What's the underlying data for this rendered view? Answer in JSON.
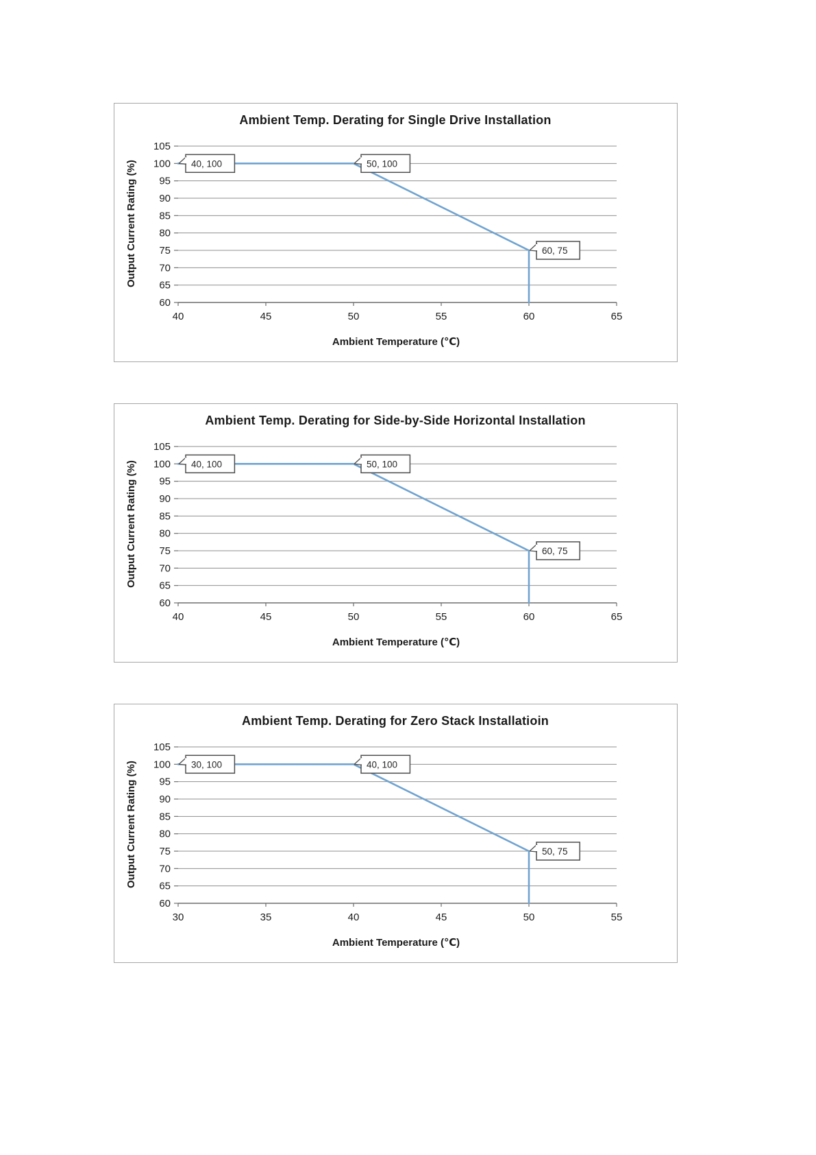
{
  "page": {
    "background": "#ffffff"
  },
  "chart_data": [
    {
      "type": "line",
      "title": "Ambient Temp. Derating for Single Drive Installation",
      "xlabel": "Ambient Temperature (℃)",
      "ylabel": "Output Current Rating (%)",
      "series": [
        {
          "name": "derating-curve",
          "x": [
            40,
            50,
            60,
            60
          ],
          "y": [
            100,
            100,
            75,
            60
          ]
        }
      ],
      "xlim": [
        40,
        65
      ],
      "ylim": [
        60,
        105
      ],
      "xticks": [
        40,
        45,
        50,
        55,
        60,
        65
      ],
      "yticks": [
        60,
        65,
        70,
        75,
        80,
        85,
        90,
        95,
        100,
        105
      ],
      "grid": true,
      "legend": false,
      "line_color": "#6fa3d0",
      "grid_color": "#8f8f8f",
      "axis_color": "#6f6f6f",
      "callout_border_color": "#4d4d4d",
      "data_labels": [
        {
          "x": 40,
          "y": 100,
          "text": "40, 100"
        },
        {
          "x": 50,
          "y": 100,
          "text": "50, 100"
        },
        {
          "x": 60,
          "y": 75,
          "text": "60, 75"
        }
      ]
    },
    {
      "type": "line",
      "title": "Ambient Temp. Derating for Side-by-Side Horizontal Installation",
      "xlabel": "Ambient Temperature (℃)",
      "ylabel": "Output Current Rating (%)",
      "series": [
        {
          "name": "derating-curve",
          "x": [
            40,
            50,
            60,
            60
          ],
          "y": [
            100,
            100,
            75,
            60
          ]
        }
      ],
      "xlim": [
        40,
        65
      ],
      "ylim": [
        60,
        105
      ],
      "xticks": [
        40,
        45,
        50,
        55,
        60,
        65
      ],
      "yticks": [
        60,
        65,
        70,
        75,
        80,
        85,
        90,
        95,
        100,
        105
      ],
      "grid": true,
      "legend": false,
      "line_color": "#6fa3d0",
      "grid_color": "#8f8f8f",
      "axis_color": "#6f6f6f",
      "callout_border_color": "#4d4d4d",
      "data_labels": [
        {
          "x": 40,
          "y": 100,
          "text": "40, 100"
        },
        {
          "x": 50,
          "y": 100,
          "text": "50, 100"
        },
        {
          "x": 60,
          "y": 75,
          "text": "60, 75"
        }
      ]
    },
    {
      "type": "line",
      "title": "Ambient Temp. Derating for Zero Stack Installatioin",
      "xlabel": "Ambient Temperature (℃)",
      "ylabel": "Output Current Rating (%)",
      "series": [
        {
          "name": "derating-curve",
          "x": [
            30,
            40,
            50,
            50
          ],
          "y": [
            100,
            100,
            75,
            60
          ]
        }
      ],
      "xlim": [
        30,
        55
      ],
      "ylim": [
        60,
        105
      ],
      "xticks": [
        30,
        35,
        40,
        45,
        50,
        55
      ],
      "yticks": [
        60,
        65,
        70,
        75,
        80,
        85,
        90,
        95,
        100,
        105
      ],
      "grid": true,
      "legend": false,
      "line_color": "#6fa3d0",
      "grid_color": "#8f8f8f",
      "axis_color": "#6f6f6f",
      "callout_border_color": "#4d4d4d",
      "data_labels": [
        {
          "x": 30,
          "y": 100,
          "text": "30, 100"
        },
        {
          "x": 40,
          "y": 100,
          "text": "40, 100"
        },
        {
          "x": 50,
          "y": 75,
          "text": "50, 75"
        }
      ]
    }
  ]
}
